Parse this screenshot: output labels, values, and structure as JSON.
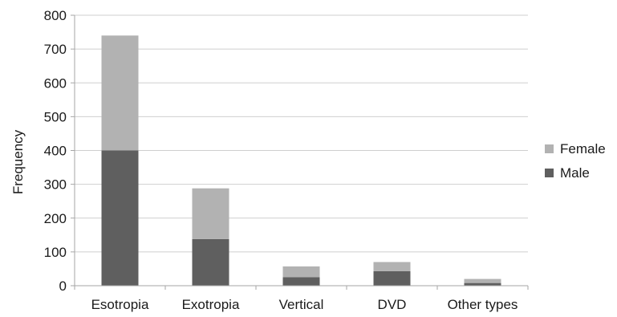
{
  "chart_data": {
    "type": "bar",
    "stacked": true,
    "title": "",
    "xlabel": "",
    "ylabel": "Frequency",
    "ylim": [
      0,
      800
    ],
    "yticks": [
      0,
      100,
      200,
      300,
      400,
      500,
      600,
      700,
      800
    ],
    "grid": true,
    "legend": "right",
    "categories": [
      "Esotropia",
      "Exotropia",
      "Vertical",
      "DVD",
      "Other types"
    ],
    "series": [
      {
        "name": "Male",
        "color": "#5f5f5f",
        "values": [
          400,
          138,
          25,
          43,
          8
        ]
      },
      {
        "name": "Female",
        "color": "#b2b2b2",
        "values": [
          340,
          150,
          32,
          27,
          12
        ]
      }
    ],
    "legend_order": [
      "Female",
      "Male"
    ]
  }
}
